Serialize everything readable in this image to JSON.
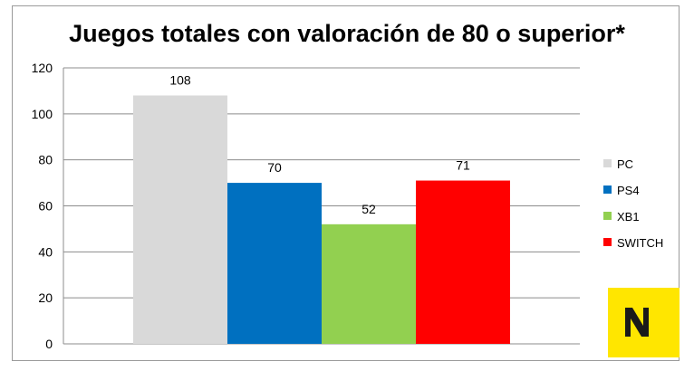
{
  "chart_data": {
    "type": "bar",
    "title": "Juegos totales con valoración de 80 o superior*",
    "xlabel": "",
    "ylabel": "",
    "ylim": [
      0,
      120
    ],
    "yticks": [
      0,
      20,
      40,
      60,
      80,
      100,
      120
    ],
    "grid": true,
    "legend_position": "right",
    "series": [
      {
        "name": "PC",
        "value": 108,
        "color": "#D9D9D9"
      },
      {
        "name": "PS4",
        "value": 70,
        "color": "#0070C0"
      },
      {
        "name": "XB1",
        "value": 52,
        "color": "#92D050"
      },
      {
        "name": "SWITCH",
        "value": 71,
        "color": "#FF0000"
      }
    ]
  },
  "logo": {
    "name": "nintenderos-logo-icon",
    "background": "#FFE600",
    "foreground": "#1A1A1A"
  }
}
